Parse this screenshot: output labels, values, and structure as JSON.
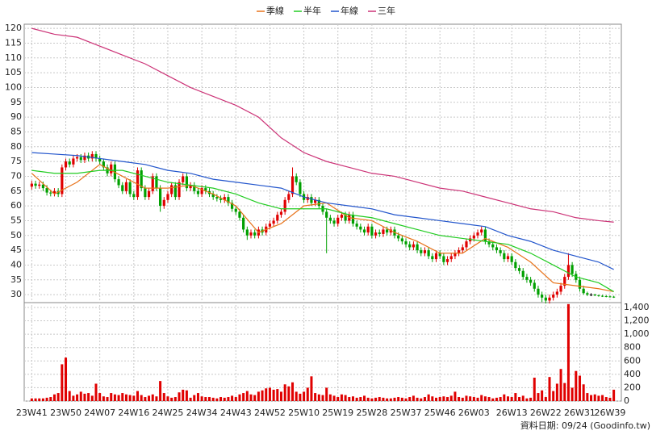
{
  "chart_data": {
    "type": "candlestick",
    "series": [
      {
        "name": "季線",
        "color": "#e8731a",
        "x": [
          0,
          6,
          12,
          18,
          24,
          30,
          36,
          42,
          48,
          54,
          60,
          66,
          72,
          78,
          84,
          90,
          96,
          102,
          108,
          114,
          120,
          126,
          132,
          138,
          144,
          150,
          154
        ],
        "values": [
          71,
          64,
          68,
          74,
          70,
          66,
          66,
          67,
          64,
          60,
          51,
          54,
          60,
          61,
          56,
          55,
          51,
          48,
          44,
          44,
          49,
          46,
          41,
          34,
          33,
          32,
          31
        ]
      },
      {
        "name": "半年",
        "color": "#22cc22",
        "x": [
          0,
          6,
          12,
          18,
          24,
          30,
          36,
          42,
          48,
          54,
          60,
          66,
          72,
          78,
          84,
          90,
          96,
          102,
          108,
          114,
          120,
          126,
          132,
          138,
          144,
          150,
          154
        ],
        "values": [
          72,
          71,
          71,
          72,
          72,
          70,
          68,
          67,
          66,
          64,
          61,
          59,
          59,
          59,
          57,
          56,
          54,
          52,
          50,
          49,
          48,
          47,
          44,
          40,
          36,
          34,
          31
        ]
      },
      {
        "name": "年線",
        "color": "#2255cc",
        "x": [
          0,
          6,
          12,
          18,
          24,
          30,
          36,
          42,
          48,
          54,
          60,
          66,
          72,
          78,
          84,
          90,
          96,
          102,
          108,
          114,
          120,
          126,
          132,
          138,
          144,
          150,
          154
        ],
        "values": [
          78,
          77.5,
          77,
          76,
          75,
          74,
          72,
          71,
          69,
          68,
          67,
          66,
          63,
          61,
          60,
          59,
          57,
          56,
          55,
          54,
          53,
          50,
          48,
          45,
          43,
          41,
          38.5
        ]
      },
      {
        "name": "三年",
        "color": "#cc3377",
        "x": [
          0,
          6,
          12,
          18,
          24,
          30,
          36,
          42,
          48,
          54,
          60,
          66,
          72,
          78,
          84,
          90,
          96,
          102,
          108,
          114,
          120,
          126,
          132,
          138,
          144,
          150,
          154
        ],
        "values": [
          120,
          118,
          117,
          114,
          111,
          108,
          104,
          100,
          97,
          94,
          90,
          83,
          78,
          75,
          73,
          71,
          70,
          68,
          66,
          65,
          63,
          61,
          59,
          58,
          56,
          55,
          54.5
        ]
      }
    ],
    "open": [
      66.5,
      67.5,
      66.8,
      67.2,
      66,
      64.5,
      64.2,
      65,
      64,
      73,
      75,
      74,
      76,
      76.5,
      75.5,
      77,
      76,
      77.5,
      76,
      75,
      73,
      71,
      74,
      69,
      67,
      65,
      68,
      64,
      63,
      72,
      66,
      63,
      65,
      70,
      66,
      60,
      62,
      64,
      67,
      63,
      68,
      70,
      66,
      67,
      65,
      64,
      66,
      65,
      64,
      63,
      62.5,
      62,
      63,
      61,
      59,
      58,
      56,
      52,
      50,
      51,
      50,
      52,
      51,
      53,
      54,
      55,
      57,
      58,
      62,
      64,
      70,
      68,
      64,
      62,
      63,
      61,
      62,
      60,
      58,
      56,
      55,
      54,
      56,
      57,
      55,
      57,
      54,
      53,
      52,
      51,
      53,
      50,
      51,
      50.5,
      52,
      51,
      52,
      50,
      49,
      48,
      47,
      46,
      47,
      45,
      44,
      45,
      43,
      42,
      44,
      43,
      41,
      42,
      43,
      44,
      45,
      46,
      48,
      49,
      50,
      51,
      52,
      48,
      47,
      46,
      45,
      44,
      42,
      43,
      41,
      39,
      38,
      36,
      35,
      34,
      32,
      30,
      29,
      28,
      29,
      30,
      31,
      33,
      36,
      40,
      37,
      35,
      32,
      30.5,
      30,
      30,
      29.8,
      29.6,
      29.5,
      29.4,
      29.3
    ],
    "high": [
      68.5,
      68.5,
      68.2,
      68.2,
      67,
      65.5,
      66,
      66,
      74,
      76,
      76,
      77,
      77.5,
      77.5,
      78,
      78,
      78.5,
      78.5,
      77,
      76,
      74,
      75,
      75,
      70,
      68,
      69,
      69,
      65,
      73,
      73,
      67,
      66,
      71,
      71,
      67,
      63,
      65,
      68,
      68,
      69,
      71,
      71,
      68,
      68,
      66,
      67,
      67,
      66,
      65,
      64,
      63.5,
      64,
      64,
      62,
      60,
      59,
      57,
      53,
      52,
      52,
      53,
      53,
      54,
      55,
      56,
      58,
      59,
      63,
      65,
      73,
      71,
      69,
      65,
      64,
      64,
      63,
      63,
      61,
      59,
      57,
      56,
      57,
      58,
      58,
      58,
      58,
      55,
      54,
      53,
      54,
      54,
      52,
      52,
      53,
      53,
      53,
      53,
      51,
      50,
      49,
      48,
      48,
      48,
      46,
      46,
      46,
      44,
      45,
      45,
      44,
      43,
      44,
      45,
      46,
      47,
      49,
      50,
      51,
      52,
      53,
      53,
      49,
      48,
      47,
      46,
      45,
      44,
      44,
      42,
      40,
      39,
      37,
      36,
      35,
      33,
      31,
      30,
      30,
      31,
      32,
      34,
      37,
      44,
      41,
      38,
      36,
      33,
      31,
      30.5,
      30.3,
      30,
      29.9,
      29.8,
      29.7,
      29.6
    ],
    "low": [
      65.5,
      65.8,
      65.8,
      65,
      63.5,
      63.2,
      63.2,
      63,
      63,
      72,
      73,
      73,
      75,
      74.5,
      74.5,
      75,
      75,
      75,
      74,
      72,
      70,
      70,
      68,
      66,
      64,
      64,
      63,
      62,
      62,
      65,
      62,
      62,
      64,
      65,
      58,
      59,
      61,
      63,
      62,
      62,
      67,
      65,
      65,
      64,
      63,
      63,
      64,
      63,
      62,
      61.5,
      61,
      61,
      60,
      58,
      57,
      55,
      51,
      48.5,
      49,
      49,
      49,
      50,
      50,
      52,
      53,
      54,
      56,
      57,
      61,
      63,
      67,
      63,
      61,
      61,
      60,
      60,
      59,
      57,
      44,
      54,
      53,
      53,
      55,
      54,
      54,
      53,
      52,
      51,
      50,
      50,
      49,
      49,
      49.5,
      49.5,
      50,
      50,
      49,
      48,
      47,
      46,
      45,
      45,
      44,
      43,
      43,
      42,
      41,
      41,
      42,
      40,
      40,
      41,
      42,
      43,
      44,
      45,
      47,
      48,
      49,
      50,
      47,
      46,
      45,
      44,
      43,
      41,
      41,
      40,
      38,
      37,
      35,
      34,
      33,
      31,
      29,
      27.5,
      27,
      27,
      28,
      29,
      30,
      32,
      35,
      36,
      34,
      31,
      30,
      29.5,
      29.5,
      29.5,
      29.3,
      29.2,
      29.1,
      29,
      28.9
    ],
    "close": [
      67.5,
      66.8,
      67.2,
      66,
      64.5,
      64.2,
      65,
      64,
      73,
      75,
      74,
      76,
      76.5,
      75.5,
      77,
      76,
      77.5,
      76,
      75,
      73,
      71,
      74,
      69,
      67,
      65,
      68,
      64,
      63,
      72,
      66,
      63,
      65,
      70,
      66,
      60,
      62,
      64,
      67,
      63,
      68,
      70,
      66,
      67,
      65,
      64,
      66,
      65,
      64,
      63,
      62.5,
      62,
      63,
      61,
      59,
      58,
      56,
      52,
      50,
      51,
      50,
      52,
      51,
      53,
      54,
      55,
      57,
      58,
      62,
      64,
      70,
      68,
      64,
      62,
      63,
      61,
      62,
      60,
      58,
      56,
      55,
      54,
      56,
      57,
      55,
      57,
      54,
      53,
      52,
      51,
      53,
      50,
      51,
      50.5,
      52,
      51,
      52,
      50,
      49,
      48,
      47,
      46,
      47,
      45,
      44,
      45,
      43,
      42,
      44,
      43,
      41,
      42,
      43,
      44,
      45,
      46,
      48,
      49,
      50,
      51,
      52,
      48,
      47,
      46,
      45,
      44,
      42,
      43,
      41,
      39,
      38,
      36,
      35,
      34,
      32,
      30,
      29,
      28,
      29,
      30,
      31,
      33,
      36,
      40,
      37,
      35,
      32,
      30.5,
      30,
      30,
      29.8,
      29.6,
      29.5,
      29.4,
      29.3,
      29.2
    ],
    "volume": [
      40,
      40,
      40,
      40,
      50,
      60,
      100,
      120,
      550,
      650,
      150,
      80,
      100,
      140,
      110,
      120,
      80,
      260,
      120,
      70,
      60,
      120,
      100,
      90,
      120,
      100,
      90,
      80,
      150,
      90,
      60,
      80,
      100,
      70,
      300,
      120,
      70,
      50,
      60,
      130,
      170,
      160,
      50,
      90,
      120,
      70,
      60,
      60,
      50,
      40,
      60,
      50,
      60,
      80,
      60,
      100,
      120,
      150,
      100,
      90,
      140,
      160,
      190,
      200,
      170,
      180,
      140,
      250,
      220,
      280,
      140,
      110,
      140,
      200,
      370,
      120,
      100,
      90,
      200,
      100,
      80,
      60,
      100,
      90,
      60,
      70,
      50,
      60,
      80,
      50,
      40,
      50,
      60,
      50,
      40,
      40,
      50,
      60,
      50,
      40,
      60,
      80,
      50,
      40,
      60,
      100,
      70,
      50,
      60,
      70,
      60,
      80,
      140,
      60,
      50,
      80,
      70,
      60,
      50,
      90,
      70,
      60,
      40,
      50,
      60,
      100,
      70,
      60,
      120,
      60,
      80,
      40,
      50,
      350,
      120,
      160,
      60,
      360,
      150,
      260,
      480,
      270,
      1450,
      200,
      450,
      380,
      250,
      120,
      90,
      100,
      80,
      90,
      60,
      50,
      170
    ],
    "xlim": [
      -2,
      156
    ],
    "xticks": [
      {
        "value": 0,
        "label": "23W41"
      },
      {
        "value": 9,
        "label": "23W50"
      },
      {
        "value": 18,
        "label": "24W07"
      },
      {
        "value": 27,
        "label": "24W16"
      },
      {
        "value": 36,
        "label": "24W25"
      },
      {
        "value": 45,
        "label": "24W34"
      },
      {
        "value": 54,
        "label": "24W43"
      },
      {
        "value": 63,
        "label": "24W52"
      },
      {
        "value": 72,
        "label": "25W10"
      },
      {
        "value": 81,
        "label": "25W19"
      },
      {
        "value": 90,
        "label": "25W28"
      },
      {
        "value": 99,
        "label": "25W37"
      },
      {
        "value": 108,
        "label": "25W46"
      },
      {
        "value": 117,
        "label": "26W03"
      },
      {
        "value": 127,
        "label": "26W13"
      },
      {
        "value": 136,
        "label": "26W22"
      },
      {
        "value": 145,
        "label": "26W31"
      },
      {
        "value": 153,
        "label": "26W39"
      }
    ],
    "ylim": [
      27.3,
      121.4
    ],
    "yticks": [
      30,
      35,
      40,
      45,
      50,
      55,
      60,
      65,
      70,
      75,
      80,
      85,
      90,
      95,
      100,
      105,
      110,
      115,
      120
    ],
    "y2lim": [
      0,
      1472
    ],
    "y2ticks": [
      0,
      200,
      400,
      600,
      800,
      {
        "value": 1000,
        "label": "1,000"
      },
      {
        "value": 1200,
        "label": "1,200"
      },
      {
        "value": 1400,
        "label": "1,400"
      }
    ],
    "up_color": "#e00000",
    "down_color": "#00a000",
    "flat_color": "#000000",
    "volume_color": "#e00000",
    "grid": true,
    "footnote": "資料日期: 09/24 (Goodinfo.tw)"
  }
}
